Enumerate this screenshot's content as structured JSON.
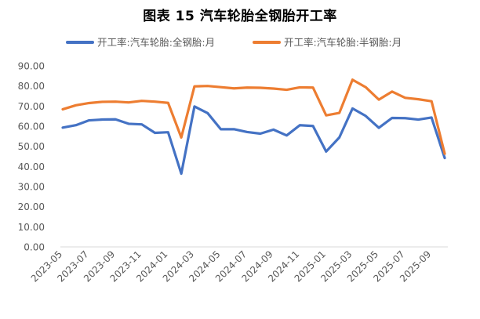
{
  "chart_data": {
    "type": "line",
    "title": "图表 15    汽车轮胎全钢胎开工率",
    "xlabel": "",
    "ylabel": "",
    "ylim": [
      0,
      90
    ],
    "y_ticks": [
      "0.00",
      "10.00",
      "20.00",
      "30.00",
      "40.00",
      "50.00",
      "60.00",
      "70.00",
      "80.00",
      "90.00"
    ],
    "x_tick_labels": [
      "2023-05",
      "2023-07",
      "2023-09",
      "2023-11",
      "2024-01",
      "2024-03",
      "2024-05",
      "2024-07",
      "2024-09",
      "2024-11",
      "2025-01",
      "2025-03",
      "2025-05",
      "2025-07",
      "2025-09"
    ],
    "grid": false,
    "legend_position": "top",
    "x": [
      "2023-05",
      "2023-06",
      "2023-07",
      "2023-08",
      "2023-09",
      "2023-10",
      "2023-11",
      "2023-12",
      "2024-01",
      "2024-02",
      "2024-03",
      "2024-04",
      "2024-05",
      "2024-06",
      "2024-07",
      "2024-08",
      "2024-09",
      "2024-10",
      "2024-11",
      "2024-12",
      "2025-01",
      "2025-02",
      "2025-03",
      "2025-04",
      "2025-05",
      "2025-06",
      "2025-07",
      "2025-08",
      "2025-09",
      "2025-10"
    ],
    "series": [
      {
        "name": "开工率:汽车轮胎:全钢胎:月",
        "color": "#4472C4",
        "values": [
          59.3,
          60.5,
          62.9,
          63.3,
          63.4,
          61.2,
          60.9,
          56.7,
          57.0,
          36.4,
          69.8,
          66.5,
          58.5,
          58.5,
          57.1,
          56.3,
          58.3,
          55.4,
          60.5,
          60.1,
          47.4,
          54.4,
          68.8,
          65.1,
          59.2,
          64.1,
          64.0,
          63.3,
          64.3,
          44.2
        ]
      },
      {
        "name": "开工率:汽车轮胎:半钢胎:月",
        "color": "#ED7D31",
        "values": [
          68.4,
          70.4,
          71.5,
          72.1,
          72.2,
          71.8,
          72.6,
          72.2,
          71.6,
          54.4,
          79.8,
          80.0,
          79.4,
          78.8,
          79.2,
          79.1,
          78.7,
          78.1,
          79.3,
          79.2,
          65.4,
          66.6,
          83.1,
          79.4,
          73.2,
          77.2,
          74.1,
          73.4,
          72.4,
          46.3
        ]
      }
    ]
  }
}
